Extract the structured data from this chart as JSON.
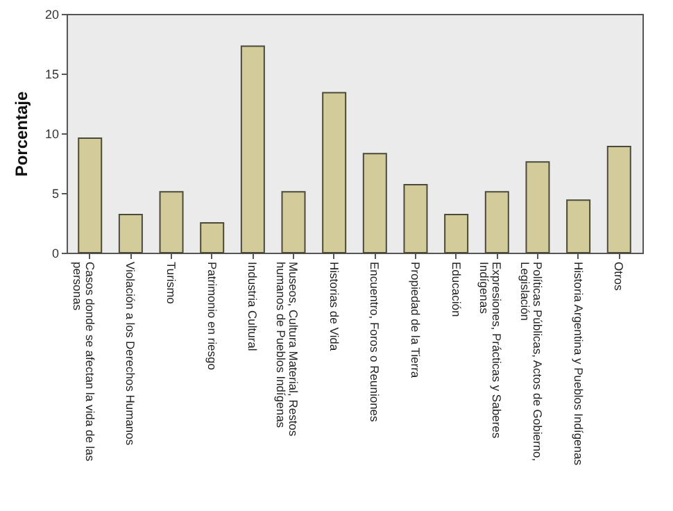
{
  "chart_data": {
    "type": "bar",
    "ylabel": "Porcentaje",
    "categories": [
      "Casos donde se afectan la vida de las personas",
      "Violación a los Derechos Humanos",
      "Turismo",
      "Patrimonio en riesgo",
      "Industria Cultural",
      "Museos, Cultura Material, Restos humanos de Pueblos Indígenas",
      "Historias de Vida",
      "Encuentro, Foros o Reuniones",
      "Propiedad de la Tierra",
      "Educación",
      "Expresiones, Prácticas y Saberes Indígenas",
      "Políticas Públicas, Actos de Gobierno, Legislación",
      "Historia Argentina y Pueblos Indígenas",
      "Otros"
    ],
    "values": [
      9.6,
      3.2,
      5.1,
      2.5,
      17.3,
      5.1,
      13.4,
      8.3,
      5.7,
      3.2,
      5.1,
      7.6,
      4.4,
      8.9
    ],
    "color": "#d3cc9a",
    "ylim": [
      0,
      20
    ],
    "yticks": [
      0,
      5,
      10,
      15,
      20
    ],
    "grid": false
  }
}
